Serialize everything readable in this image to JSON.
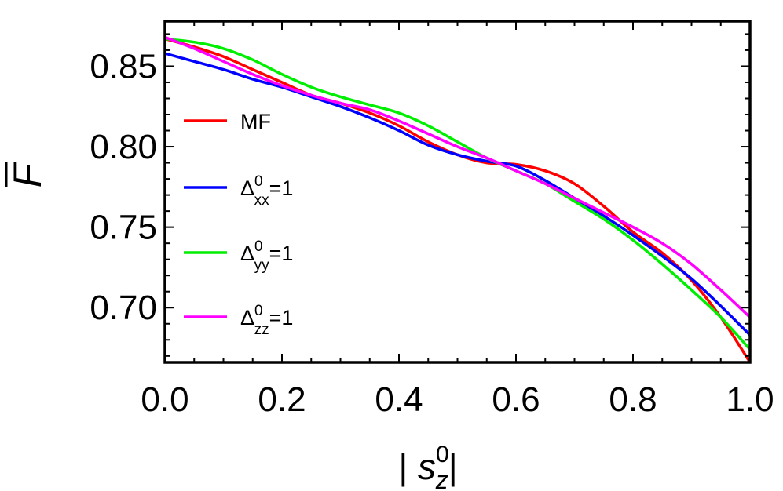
{
  "chart_data": {
    "type": "line",
    "xlabel": "|s_z^0|",
    "ylabel": "F",
    "xlim": [
      0.0,
      1.0
    ],
    "ylim": [
      0.666,
      0.878
    ],
    "xticks": [
      0.0,
      0.2,
      0.4,
      0.6,
      0.8,
      1.0
    ],
    "xtick_labels": [
      "0.0",
      "0.2",
      "0.4",
      "0.6",
      "0.8",
      "1.0"
    ],
    "yticks": [
      0.7,
      0.75,
      0.8,
      0.85
    ],
    "ytick_labels": [
      "0.70",
      "0.75",
      "0.80",
      "0.85"
    ],
    "grid": false,
    "legend_position": "left",
    "x": [
      0.0,
      0.05,
      0.1,
      0.15,
      0.2,
      0.25,
      0.3,
      0.35,
      0.4,
      0.45,
      0.5,
      0.55,
      0.6,
      0.65,
      0.7,
      0.75,
      0.8,
      0.85,
      0.9,
      0.95,
      1.0
    ],
    "series": [
      {
        "name": "MF",
        "name_parts": {
          "base": "MF",
          "sup": "",
          "sub": "",
          "suffix": ""
        },
        "color": "#ff0000",
        "values": [
          0.867,
          0.862,
          0.856,
          0.848,
          0.84,
          0.832,
          0.827,
          0.821,
          0.813,
          0.803,
          0.795,
          0.79,
          0.789,
          0.785,
          0.777,
          0.763,
          0.747,
          0.734,
          0.717,
          0.694,
          0.666
        ]
      },
      {
        "name": "Δ_xx^0=1",
        "name_parts": {
          "base": "Δ",
          "sup": "0",
          "sub": "xx",
          "suffix": "=1"
        },
        "color": "#0000ff",
        "values": [
          0.858,
          0.853,
          0.848,
          0.842,
          0.837,
          0.831,
          0.825,
          0.818,
          0.81,
          0.801,
          0.795,
          0.791,
          0.788,
          0.779,
          0.768,
          0.757,
          0.745,
          0.732,
          0.718,
          0.701,
          0.683
        ]
      },
      {
        "name": "Δ_yy^0=1",
        "name_parts": {
          "base": "Δ",
          "sup": "0",
          "sub": "yy",
          "suffix": "=1"
        },
        "color": "#00ee00",
        "values": [
          0.867,
          0.865,
          0.861,
          0.854,
          0.845,
          0.837,
          0.831,
          0.826,
          0.821,
          0.813,
          0.803,
          0.793,
          0.785,
          0.777,
          0.766,
          0.755,
          0.742,
          0.727,
          0.711,
          0.694,
          0.674
        ]
      },
      {
        "name": "Δ_zz^0=1",
        "name_parts": {
          "base": "Δ",
          "sup": "0",
          "sub": "zz",
          "suffix": "=1"
        },
        "color": "#ff00ff",
        "values": [
          0.868,
          0.861,
          0.853,
          0.845,
          0.838,
          0.832,
          0.827,
          0.823,
          0.816,
          0.808,
          0.8,
          0.793,
          0.785,
          0.777,
          0.768,
          0.759,
          0.75,
          0.74,
          0.727,
          0.711,
          0.694
        ]
      }
    ]
  }
}
